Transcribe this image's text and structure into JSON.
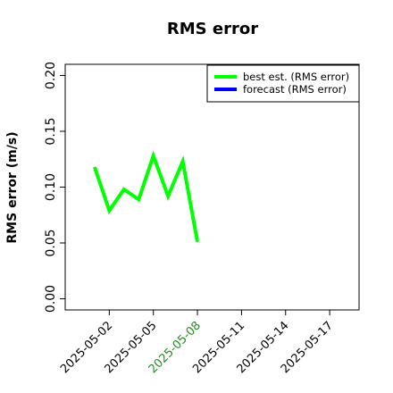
{
  "chart_data": {
    "type": "line",
    "title": "RMS error",
    "ylabel": "RMS error (m/s)",
    "x": [
      "2025-05-01",
      "2025-05-02",
      "2025-05-03",
      "2025-05-04",
      "2025-05-05",
      "2025-05-06",
      "2025-05-07",
      "2025-05-08"
    ],
    "series": [
      {
        "name": "best est. (RMS error)",
        "color": "#00ff00",
        "values": [
          0.118,
          0.079,
          0.098,
          0.089,
          0.128,
          0.092,
          0.123,
          0.051
        ]
      },
      {
        "name": "forecast (RMS error)",
        "color": "#0000ff",
        "values": [
          null,
          null,
          null,
          null,
          null,
          null,
          null,
          null
        ]
      }
    ],
    "xlim": [
      "2025-04-29",
      "2025-05-19"
    ],
    "xticks": [
      "2025-05-02",
      "2025-05-05",
      "2025-05-08",
      "2025-05-11",
      "2025-05-14",
      "2025-05-17"
    ],
    "highlight_xtick_index": 2,
    "highlight_color": "#228b22",
    "ylim": [
      -0.01,
      0.21
    ],
    "yticks": [
      {
        "value": 0,
        "label": "0.00"
      },
      0.05,
      {
        "value": 0.1,
        "label": "0.10"
      },
      0.15,
      {
        "value": 0.2,
        "label": "0.20"
      }
    ],
    "legend": "upper right"
  }
}
